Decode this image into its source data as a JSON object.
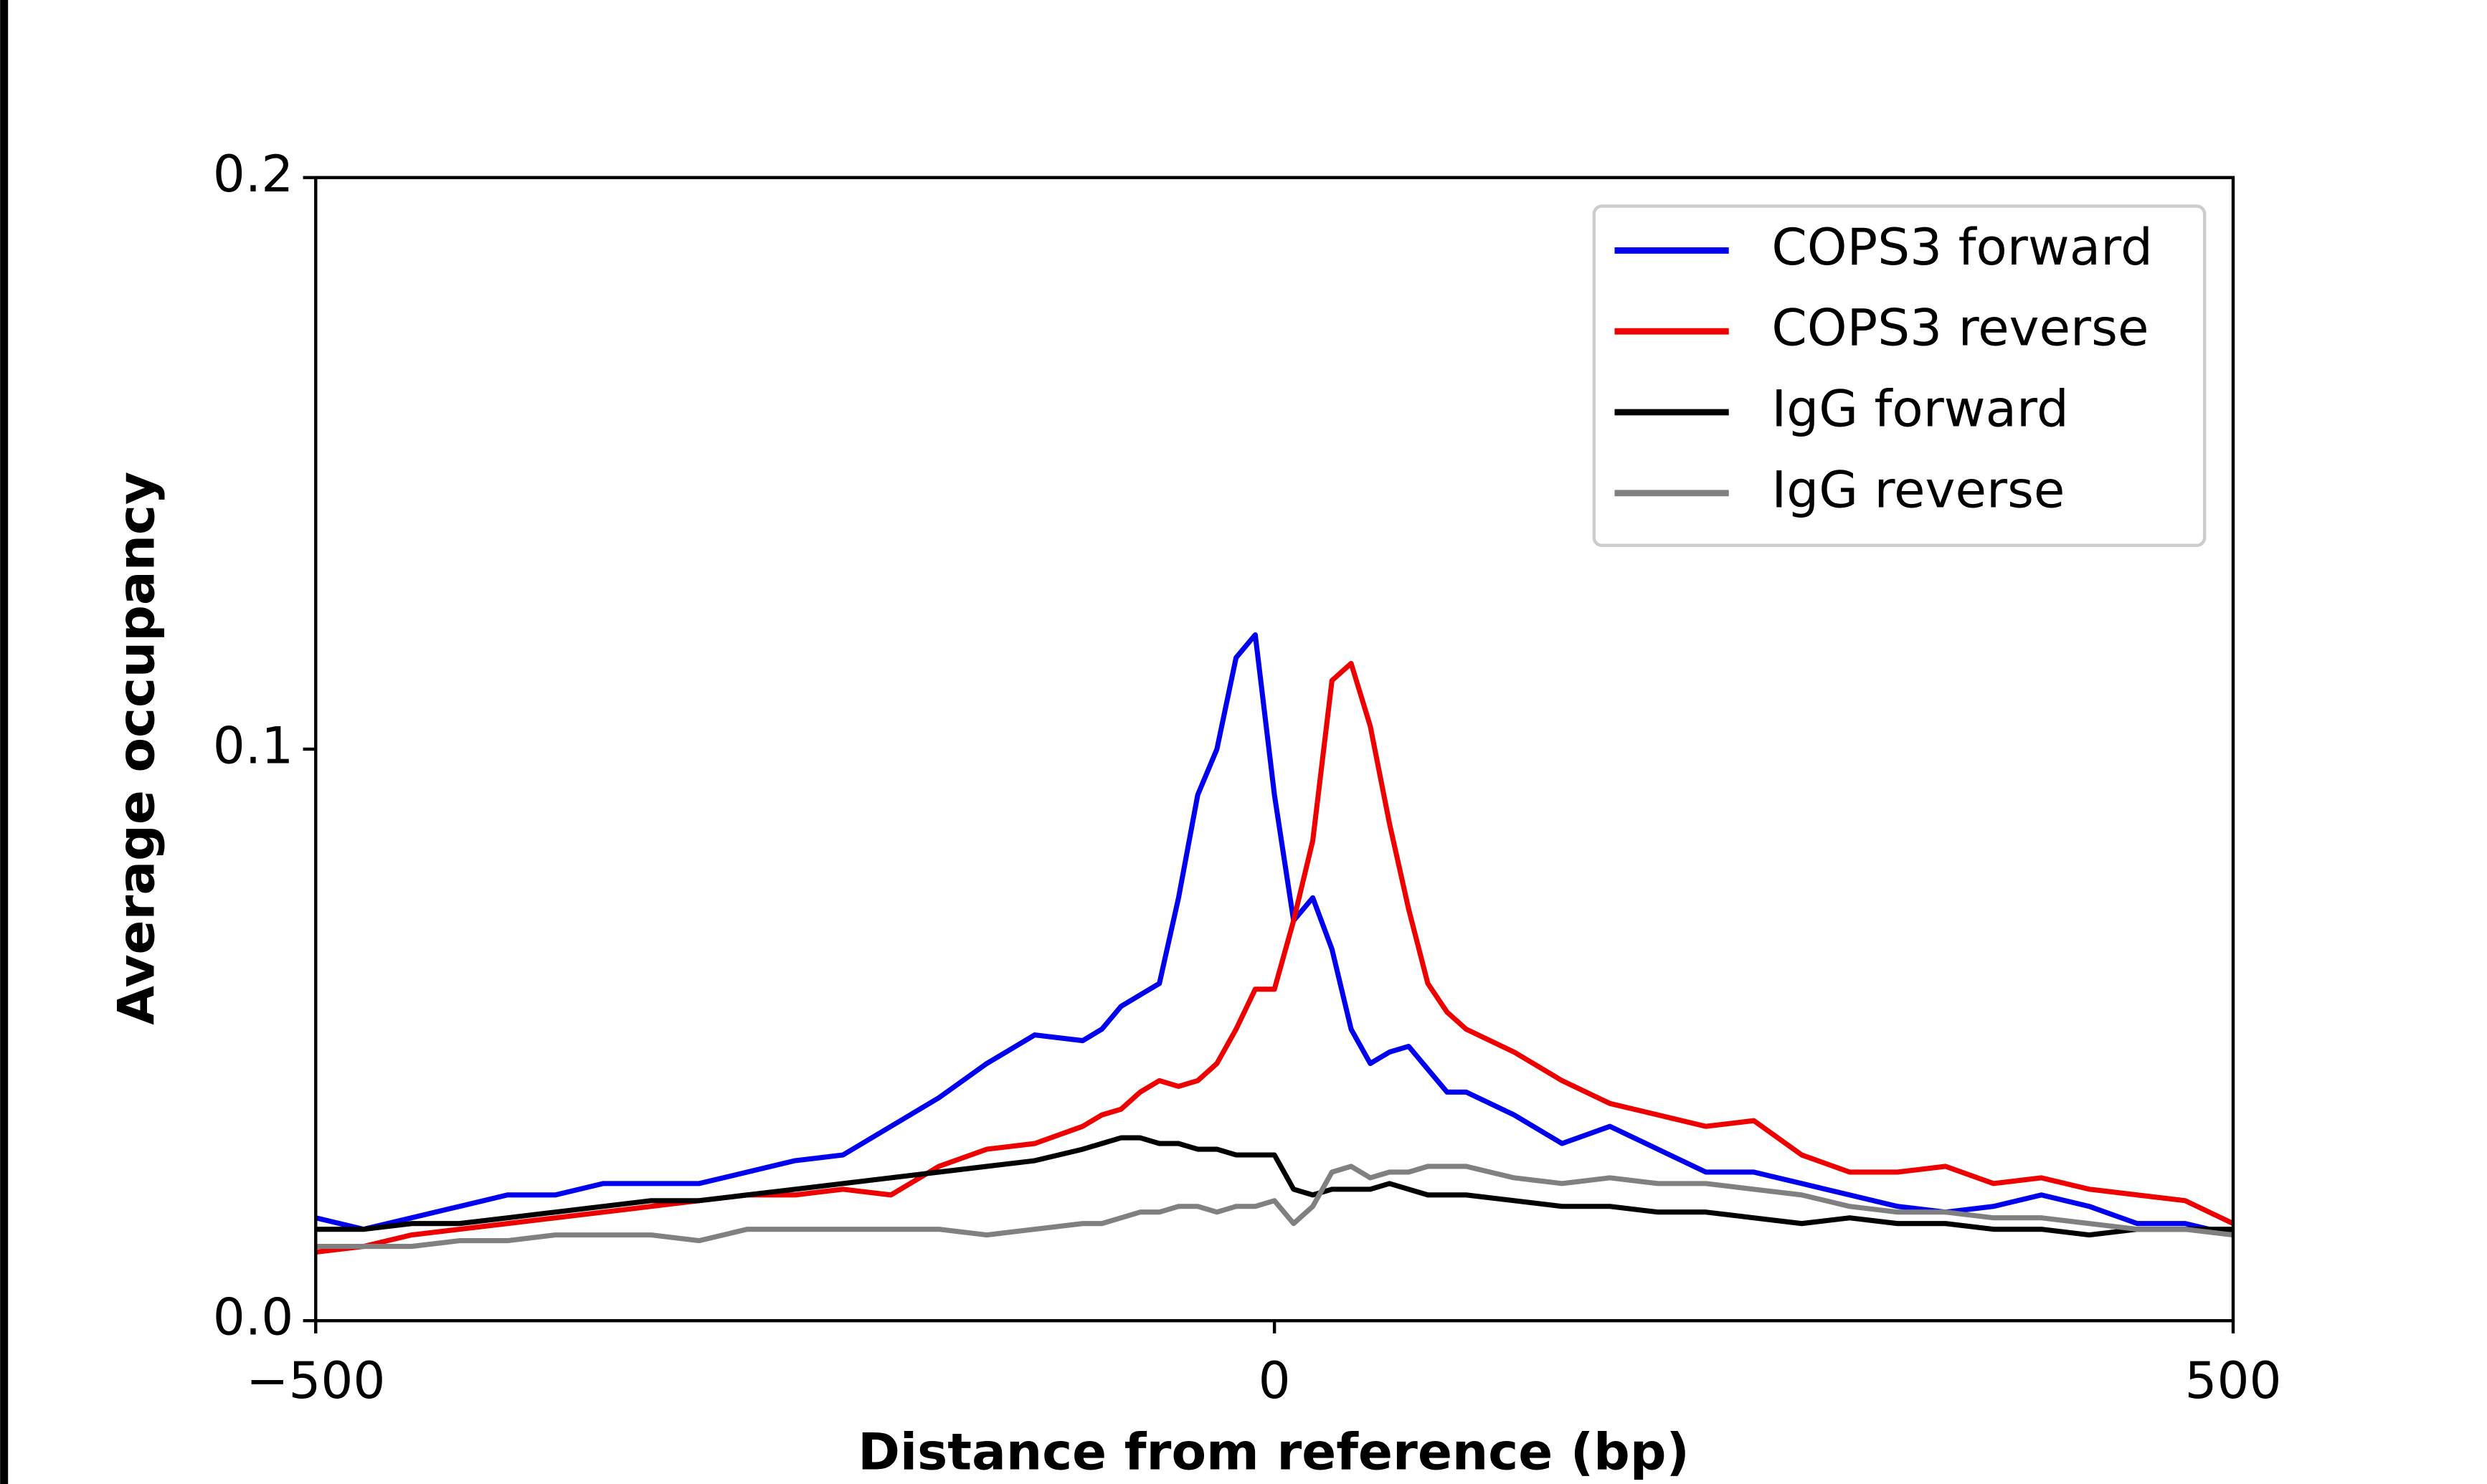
{
  "chart_data": {
    "type": "line",
    "xlabel": "Distance from reference (bp)",
    "ylabel": "Average occupancy",
    "x": [
      -500,
      -475,
      -450,
      -425,
      -400,
      -375,
      -350,
      -325,
      -300,
      -275,
      -250,
      -225,
      -200,
      -175,
      -150,
      -125,
      -100,
      -90,
      -80,
      -70,
      -60,
      -50,
      -40,
      -30,
      -20,
      -10,
      0,
      10,
      20,
      30,
      40,
      50,
      60,
      70,
      80,
      90,
      100,
      125,
      150,
      175,
      200,
      225,
      250,
      275,
      300,
      325,
      350,
      375,
      400,
      425,
      450,
      475,
      500
    ],
    "series": [
      {
        "name": "COPS3 forward",
        "color": "#0000ee",
        "values": [
          0.018,
          0.016,
          0.018,
          0.02,
          0.022,
          0.022,
          0.024,
          0.024,
          0.024,
          0.026,
          0.028,
          0.029,
          0.034,
          0.039,
          0.045,
          0.05,
          0.049,
          0.051,
          0.055,
          0.057,
          0.059,
          0.074,
          0.092,
          0.1,
          0.116,
          0.12,
          0.092,
          0.07,
          0.074,
          0.065,
          0.051,
          0.045,
          0.047,
          0.048,
          0.044,
          0.04,
          0.04,
          0.036,
          0.031,
          0.034,
          0.03,
          0.026,
          0.026,
          0.024,
          0.022,
          0.02,
          0.019,
          0.02,
          0.022,
          0.02,
          0.017,
          0.017,
          0.015
        ]
      },
      {
        "name": "COPS3 reverse",
        "color": "#ee0000",
        "values": [
          0.012,
          0.013,
          0.015,
          0.016,
          0.017,
          0.018,
          0.019,
          0.02,
          0.021,
          0.022,
          0.022,
          0.023,
          0.022,
          0.027,
          0.03,
          0.031,
          0.034,
          0.036,
          0.037,
          0.04,
          0.042,
          0.041,
          0.042,
          0.045,
          0.051,
          0.058,
          0.058,
          0.07,
          0.084,
          0.112,
          0.115,
          0.104,
          0.087,
          0.072,
          0.059,
          0.054,
          0.051,
          0.047,
          0.042,
          0.038,
          0.036,
          0.034,
          0.035,
          0.029,
          0.026,
          0.026,
          0.027,
          0.024,
          0.025,
          0.023,
          0.022,
          0.021,
          0.017
        ]
      },
      {
        "name": "IgG forward",
        "color": "#000000",
        "values": [
          0.016,
          0.016,
          0.017,
          0.017,
          0.018,
          0.019,
          0.02,
          0.021,
          0.021,
          0.022,
          0.023,
          0.024,
          0.025,
          0.026,
          0.027,
          0.028,
          0.03,
          0.031,
          0.032,
          0.032,
          0.031,
          0.031,
          0.03,
          0.03,
          0.029,
          0.029,
          0.029,
          0.023,
          0.022,
          0.023,
          0.023,
          0.023,
          0.024,
          0.023,
          0.022,
          0.022,
          0.022,
          0.021,
          0.02,
          0.02,
          0.019,
          0.019,
          0.018,
          0.017,
          0.018,
          0.017,
          0.017,
          0.016,
          0.016,
          0.015,
          0.016,
          0.016,
          0.016
        ]
      },
      {
        "name": "IgG reverse",
        "color": "#808080",
        "values": [
          0.013,
          0.013,
          0.013,
          0.014,
          0.014,
          0.015,
          0.015,
          0.015,
          0.014,
          0.016,
          0.016,
          0.016,
          0.016,
          0.016,
          0.015,
          0.016,
          0.017,
          0.017,
          0.018,
          0.019,
          0.019,
          0.02,
          0.02,
          0.019,
          0.02,
          0.02,
          0.021,
          0.017,
          0.02,
          0.026,
          0.027,
          0.025,
          0.026,
          0.026,
          0.027,
          0.027,
          0.027,
          0.025,
          0.024,
          0.025,
          0.024,
          0.024,
          0.023,
          0.022,
          0.02,
          0.019,
          0.019,
          0.018,
          0.018,
          0.017,
          0.016,
          0.016,
          0.015
        ]
      }
    ],
    "xlim": [
      -500,
      500
    ],
    "xticks": [
      {
        "value": -500,
        "label": "−500"
      },
      0,
      500
    ],
    "ylim": [
      0,
      0.2
    ],
    "yticks": [
      {
        "value": 0,
        "label": "0.0"
      },
      0.1,
      0.2
    ],
    "legend": "upper right"
  }
}
